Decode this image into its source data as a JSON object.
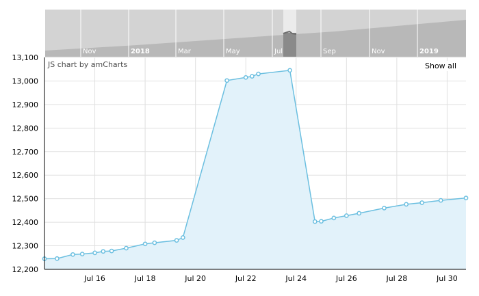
{
  "credit": "JS chart by amCharts",
  "show_all_label": "Show all",
  "colors": {
    "line": "#6bbfe0",
    "fill": "#e2f2fa",
    "scroll_track": "#d3d3d3",
    "scroll_area": "#b8b8b8",
    "scroll_thumb": "#8a8a8a",
    "scroll_window": "#ebebeb",
    "grid": "#e0e0e0"
  },
  "scrollbar": {
    "labels": [
      {
        "text": "Nov",
        "bold": false
      },
      {
        "text": "2018",
        "bold": true
      },
      {
        "text": "Mar",
        "bold": false
      },
      {
        "text": "May",
        "bold": false
      },
      {
        "text": "Jul",
        "bold": false
      },
      {
        "text": "Sep",
        "bold": false
      },
      {
        "text": "Nov",
        "bold": false
      },
      {
        "text": "2019",
        "bold": true
      }
    ]
  },
  "chart_data": {
    "type": "area",
    "title": "",
    "xlabel": "",
    "ylabel": "",
    "ylim": [
      12200,
      13100
    ],
    "xlim": [
      "2018-07-14",
      "2018-07-30"
    ],
    "y_ticks": [
      "12,200",
      "12,300",
      "12,400",
      "12,500",
      "12,600",
      "12,700",
      "12,800",
      "12,900",
      "13,000",
      "13,100"
    ],
    "x_ticks": [
      {
        "date": "2018-07-16",
        "label": "Jul 16"
      },
      {
        "date": "2018-07-18",
        "label": "Jul 18"
      },
      {
        "date": "2018-07-20",
        "label": "Jul 20"
      },
      {
        "date": "2018-07-22",
        "label": "Jul 22"
      },
      {
        "date": "2018-07-24",
        "label": "Jul 24"
      },
      {
        "date": "2018-07-26",
        "label": "Jul 26"
      },
      {
        "date": "2018-07-28",
        "label": "Jul 28"
      },
      {
        "date": "2018-07-30",
        "label": "Jul 30"
      }
    ],
    "grid": true,
    "points": [
      {
        "x": "2018-07-14 00:00",
        "y": 12245
      },
      {
        "x": "2018-07-14 12:00",
        "y": 12246
      },
      {
        "x": "2018-07-15 03:00",
        "y": 12263
      },
      {
        "x": "2018-07-15 12:00",
        "y": 12265
      },
      {
        "x": "2018-07-16 00:00",
        "y": 12270
      },
      {
        "x": "2018-07-16 08:00",
        "y": 12276
      },
      {
        "x": "2018-07-16 16:00",
        "y": 12278
      },
      {
        "x": "2018-07-17 06:00",
        "y": 12290
      },
      {
        "x": "2018-07-18 00:00",
        "y": 12308
      },
      {
        "x": "2018-07-18 09:00",
        "y": 12313
      },
      {
        "x": "2018-07-19 06:00",
        "y": 12323
      },
      {
        "x": "2018-07-19 12:00",
        "y": 12335
      },
      {
        "x": "2018-07-21 06:00",
        "y": 13002
      },
      {
        "x": "2018-07-22 00:00",
        "y": 13015
      },
      {
        "x": "2018-07-22 06:00",
        "y": 13020
      },
      {
        "x": "2018-07-22 12:00",
        "y": 13030
      },
      {
        "x": "2018-07-23 18:00",
        "y": 13045
      },
      {
        "x": "2018-07-24 18:00",
        "y": 12403
      },
      {
        "x": "2018-07-25 00:00",
        "y": 12404
      },
      {
        "x": "2018-07-25 12:00",
        "y": 12418
      },
      {
        "x": "2018-07-26 00:00",
        "y": 12428
      },
      {
        "x": "2018-07-26 12:00",
        "y": 12438
      },
      {
        "x": "2018-07-27 12:00",
        "y": 12460
      },
      {
        "x": "2018-07-28 09:00",
        "y": 12476
      },
      {
        "x": "2018-07-29 00:00",
        "y": 12483
      },
      {
        "x": "2018-07-29 18:00",
        "y": 12493
      },
      {
        "x": "2018-07-30 18:00",
        "y": 12503
      }
    ]
  }
}
